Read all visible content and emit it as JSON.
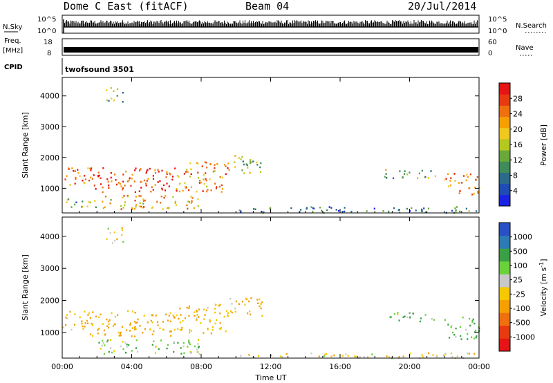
{
  "header": {
    "title": "Dome C East (fitACF)",
    "beam": "Beam 04",
    "date": "20/Jul/2014"
  },
  "top_panels": {
    "nsky_label": "N.Sky",
    "nsky_ticks": [
      "10^5",
      "10^0"
    ],
    "nsearch_label": "N.Search",
    "nsearch_ticks": [
      "10^5",
      "10^0"
    ],
    "freq_label": "Freq.",
    "freq_unit": "[MHz]",
    "freq_ticks": [
      "18",
      "8"
    ],
    "nave_label": "Nave",
    "nave_ticks": [
      "60",
      "0"
    ],
    "cpid_label": "CPID",
    "cpid_value": "twofsound 3501"
  },
  "chart_data": [
    {
      "type": "heatmap",
      "name": "power",
      "ylabel": "Slant Range [km]",
      "ylim": [
        200,
        4600
      ],
      "yticks": [
        1000,
        2000,
        3000,
        4000
      ],
      "xlim": [
        0,
        24
      ],
      "xticks": [
        "00:00",
        "04:00",
        "08:00",
        "12:00",
        "16:00",
        "20:00",
        "00:00"
      ],
      "colorbar": {
        "label": "Power [dB]",
        "ticks": [
          "4",
          "8",
          "12",
          "16",
          "20",
          "24",
          "28"
        ],
        "range": [
          0,
          30
        ],
        "colors": [
          "#1a22e6",
          "#1e4bb4",
          "#2a6a8a",
          "#3d8c5a",
          "#6aa83a",
          "#b4c81e",
          "#f0c81e",
          "#f5a000",
          "#f07010",
          "#e83a10",
          "#e61414"
        ]
      },
      "regions": [
        {
          "t0": 0.0,
          "t1": 1.5,
          "r0": 1100,
          "r1": 1700,
          "v": 24
        },
        {
          "t0": 1.5,
          "t1": 6.5,
          "r0": 900,
          "r1": 1700,
          "v": 26
        },
        {
          "t0": 6.5,
          "t1": 9.5,
          "r0": 900,
          "r1": 1900,
          "v": 22
        },
        {
          "t0": 9.5,
          "t1": 11.5,
          "r0": 1500,
          "r1": 2100,
          "v": 14
        },
        {
          "t0": 2.0,
          "t1": 8.0,
          "r0": 350,
          "r1": 800,
          "v": 20
        },
        {
          "t0": 0.2,
          "t1": 2.0,
          "r0": 350,
          "r1": 700,
          "v": 12
        },
        {
          "t0": 18.5,
          "t1": 21.5,
          "r0": 1350,
          "r1": 1650,
          "v": 14
        },
        {
          "t0": 22.0,
          "t1": 24.0,
          "r0": 800,
          "r1": 1500,
          "v": 22
        },
        {
          "t0": 10.0,
          "t1": 24.0,
          "r0": 220,
          "r1": 420,
          "v": 8
        },
        {
          "t0": 2.5,
          "t1": 3.5,
          "r0": 3800,
          "r1": 4300,
          "v": 12
        }
      ]
    },
    {
      "type": "heatmap",
      "name": "velocity",
      "ylabel": "Slant Range [km]",
      "ylim": [
        200,
        4600
      ],
      "yticks": [
        1000,
        2000,
        3000,
        4000
      ],
      "xlim": [
        0,
        24
      ],
      "xlabel": "Time UT",
      "xticks": [
        "00:00",
        "04:00",
        "08:00",
        "12:00",
        "16:00",
        "20:00",
        "00:00"
      ],
      "colorbar": {
        "label": "Velocity [m s",
        "label_sup": "-1",
        "label_end": "]",
        "ticks": [
          "1000",
          "500",
          "100",
          "25",
          "-25",
          "-100",
          "-500",
          "-1000"
        ],
        "colors": [
          "#2a50c8",
          "#2e7ab4",
          "#3aa046",
          "#6ad23a",
          "#c8c8c8",
          "#f5c800",
          "#f5a000",
          "#f07010",
          "#e83a10",
          "#e61414"
        ]
      },
      "regions": [
        {
          "t0": 0.0,
          "t1": 1.5,
          "r0": 1100,
          "r1": 1700,
          "v": -100
        },
        {
          "t0": 1.5,
          "t1": 6.5,
          "r0": 900,
          "r1": 1700,
          "v": -150
        },
        {
          "t0": 6.5,
          "t1": 9.5,
          "r0": 1000,
          "r1": 1900,
          "v": -100
        },
        {
          "t0": 9.5,
          "t1": 11.5,
          "r0": 1500,
          "r1": 2100,
          "v": -80
        },
        {
          "t0": 2.0,
          "t1": 8.0,
          "r0": 350,
          "r1": 800,
          "v": 50
        },
        {
          "t0": 18.5,
          "t1": 21.5,
          "r0": 1350,
          "r1": 1650,
          "v": 60
        },
        {
          "t0": 22.0,
          "t1": 24.0,
          "r0": 800,
          "r1": 1500,
          "v": 80
        },
        {
          "t0": 10.0,
          "t1": 24.0,
          "r0": 220,
          "r1": 380,
          "v": -60
        },
        {
          "t0": 2.5,
          "t1": 3.5,
          "r0": 3800,
          "r1": 4300,
          "v": -30
        }
      ]
    }
  ]
}
